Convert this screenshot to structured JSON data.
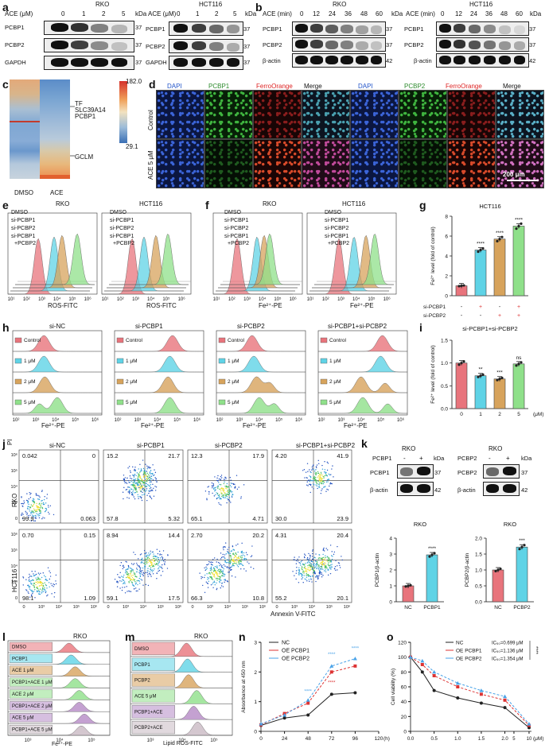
{
  "panel_letters": {
    "a": "a",
    "b": "b",
    "c": "c",
    "d": "d",
    "e": "e",
    "f": "f",
    "g": "g",
    "h": "h",
    "i": "i",
    "j": "j",
    "k": "k",
    "l": "l",
    "m": "m",
    "n": "n",
    "o": "o"
  },
  "a": {
    "left": {
      "title": "RKO",
      "unit": "ACE (μM)",
      "conc": [
        "0",
        "1",
        "2",
        "5"
      ],
      "kda": "kDa",
      "rows": [
        "PCBP1",
        "PCBP2",
        "GAPDH"
      ],
      "mw": [
        "37",
        "37",
        "37"
      ]
    },
    "right": {
      "title": "HCT116",
      "unit": "ACE (μM)",
      "conc": [
        "0",
        "1",
        "2",
        "5"
      ],
      "kda": "kDa",
      "rows": [
        "PCBP1",
        "PCBP2",
        "GAPDH"
      ],
      "mw": [
        "37",
        "37",
        "37"
      ]
    }
  },
  "b": {
    "left": {
      "title": "RKO",
      "unit": "ACE (min)",
      "times": [
        "0",
        "12",
        "24",
        "36",
        "48",
        "60"
      ],
      "kda": "kDa",
      "rows": [
        "PCBP1",
        "PCBP2",
        "β-actin"
      ],
      "mw": [
        "37",
        "37",
        "42"
      ]
    },
    "right": {
      "title": "HCT116",
      "unit": "ACE (min)",
      "times": [
        "0",
        "12",
        "24",
        "36",
        "48",
        "60"
      ],
      "kda": "kDa",
      "rows": [
        "PCBP1",
        "PCBP2",
        "β-actin"
      ],
      "mw": [
        "37",
        "37",
        "42"
      ]
    }
  },
  "c": {
    "scale_max": "182.0",
    "scale_min": "29.1",
    "genes": [
      "TF",
      "SLC39A14",
      "PCBP1",
      "GCLM"
    ],
    "cols": [
      "DMSO",
      "ACE"
    ]
  },
  "d": {
    "cols": [
      "DAPI",
      "PCBP1",
      "FerroOrange",
      "Merge",
      "DAPI",
      "PCBP2",
      "FerroOrange",
      "Merge"
    ],
    "rows": [
      "Control",
      "ACE 5 μM"
    ],
    "scalebar": "200 μm"
  },
  "e": {
    "titles": [
      "RKO",
      "HCT116"
    ],
    "legend": [
      "DMSO",
      "si-PCBP1",
      "si-PCBP2",
      "si-PCBP1",
      "+PCBP2"
    ],
    "xlabel": "ROS-FITC",
    "ticks": [
      "10¹",
      "10²",
      "10³",
      "10⁴",
      "10⁵",
      "10⁶"
    ]
  },
  "f": {
    "titles": [
      "RKO",
      "HCT116"
    ],
    "legend": [
      "DMSO",
      "si-PCBP1",
      "si-PCBP2",
      "si-PCBP1",
      "+PCBP2"
    ],
    "xlabel": "Fe²⁺-PE",
    "ticks": [
      "10¹",
      "10²",
      "10³",
      "10⁴",
      "10⁵",
      "10⁶"
    ]
  },
  "h": {
    "titles": [
      "si-NC",
      "si-PCBP1",
      "si-PCBP2",
      "si-PCBP1+si-PCBP2"
    ],
    "rows": [
      "Control",
      "1 μM",
      "2 μM",
      "5 μM"
    ],
    "xlabel": "Fe²⁺-PE",
    "ticks": [
      "10²",
      "10³",
      "10⁴",
      "10⁵",
      "10⁶"
    ]
  },
  "j": {
    "titles": [
      "si-NC",
      "si-PCBP1",
      "si-PCBP2",
      "si-PCBP1+si-PCBP2"
    ],
    "rows": [
      "RKO",
      "HCT116"
    ],
    "ylabel": "PI",
    "xlabel": "Annexin V-FITC",
    "quads": [
      [
        "0.042",
        "0",
        "99.9",
        "0.063"
      ],
      [
        "15.2",
        "21.7",
        "57.8",
        "5.32"
      ],
      [
        "12.3",
        "17.9",
        "65.1",
        "4.71"
      ],
      [
        "4.20",
        "41.9",
        "30.0",
        "23.9"
      ],
      [
        "0.70",
        "0.15",
        "98.1",
        "1.09"
      ],
      [
        "8.94",
        "14.4",
        "59.1",
        "17.5"
      ],
      [
        "2.70",
        "20.2",
        "66.3",
        "10.8"
      ],
      [
        "4.31",
        "20.4",
        "55.2",
        "20.1"
      ]
    ],
    "ticks": [
      "0",
      "10³",
      "10⁴",
      "10⁵",
      "10⁶"
    ]
  },
  "k": {
    "left": {
      "title": "RKO",
      "cond": "PCBP1",
      "signs": [
        "-",
        "+"
      ],
      "kda": "kDa",
      "rows": [
        "PCBP1",
        "β-actin"
      ],
      "mw": [
        "37",
        "42"
      ]
    },
    "right": {
      "title": "RKO",
      "cond": "PCBP2",
      "signs": [
        "-",
        "+"
      ],
      "kda": "kDa",
      "rows": [
        "PCBP2",
        "β-actin"
      ],
      "mw": [
        "37",
        "42"
      ]
    }
  },
  "l": {
    "title": "RKO",
    "rows": [
      "DMSO",
      "PCBP1",
      "ACE 1 μM",
      "PCBP1+ACE 1 μM",
      "ACE 2 μM",
      "PCBP1+ACE 2 μM",
      "ACE 5 μM",
      "PCBP1+ACE 5 μM"
    ],
    "xlabel": "Fe²⁺-PE",
    "ticks": [
      "10³",
      "10⁴",
      "10⁵"
    ]
  },
  "m": {
    "title": "RKO",
    "rows": [
      "DMSO",
      "PCBP1",
      "PCBP2",
      "ACE 5 μM",
      "PCBP1+ACE",
      "PCBP2+ACE"
    ],
    "xlabel": "Lipid ROS-FITC",
    "ticks": [
      "10³",
      "10⁴",
      "10⁵"
    ]
  },
  "colors": {
    "pink": "#e8747c",
    "cyan": "#5fd3e6",
    "tan": "#d7a35c",
    "green": "#8fe08a",
    "purple": "#b58ac6",
    "grey": "#c9b9c3",
    "red": "#d33",
    "blue": "#4aa3e8",
    "black": "#222"
  },
  "chart_data": [
    {
      "panel": "g",
      "type": "bar",
      "title": "HCT116",
      "ylabel": "Fe²⁺ level (fold of control)",
      "ylim": [
        0,
        8
      ],
      "yticks": [
        "0",
        "2",
        "4",
        "6",
        "8"
      ],
      "categories": [
        "1",
        "2",
        "3",
        "4"
      ],
      "values": [
        1.0,
        4.6,
        5.7,
        7.0
      ],
      "sig": [
        "",
        "****",
        "****",
        "****"
      ],
      "x_rows": [
        {
          "name": "si-PCBP1",
          "signs": [
            "-",
            "+",
            "-",
            "+"
          ]
        },
        {
          "name": "si-PCBP2",
          "signs": [
            "-",
            "-",
            "+",
            "+"
          ]
        }
      ]
    },
    {
      "panel": "i",
      "type": "bar",
      "title": "si-PCBP1+si-PCBP2",
      "ylabel": "Fe²⁺ level (fold of control)",
      "ylim": [
        0,
        1.5
      ],
      "yticks": [
        "0.0",
        "0.5",
        "1.0",
        "1.5"
      ],
      "categories": [
        "0",
        "1",
        "2",
        "5"
      ],
      "values": [
        1.0,
        0.72,
        0.65,
        0.98
      ],
      "sig": [
        "",
        "**",
        "***",
        "ns"
      ],
      "xunit": "(μM)"
    },
    {
      "panel": "k1",
      "type": "bar",
      "title": "RKO",
      "ylabel": "PCBP1/β-actin",
      "ylim": [
        0,
        4
      ],
      "yticks": [
        "0",
        "1",
        "2",
        "3",
        "4"
      ],
      "categories": [
        "NC",
        "PCBP1"
      ],
      "values": [
        1.0,
        2.95
      ],
      "sig": [
        "",
        "****"
      ]
    },
    {
      "panel": "k2",
      "type": "bar",
      "title": "RKO",
      "ylabel": "PCBP2/β-actin",
      "ylim": [
        0,
        2.0
      ],
      "yticks": [
        "0.0",
        "0.5",
        "1.0",
        "1.5",
        "2.0"
      ],
      "categories": [
        "NC",
        "PCBP2"
      ],
      "values": [
        1.0,
        1.72
      ],
      "sig": [
        "",
        "***"
      ]
    },
    {
      "panel": "n",
      "type": "line",
      "xlabel": "(h)",
      "ylabel": "Absorbance at 450 nm",
      "xlim": [
        0,
        120
      ],
      "ylim": [
        0,
        3
      ],
      "xticks": [
        "0",
        "24",
        "48",
        "72",
        "96",
        "120"
      ],
      "yticks": [
        "0",
        "1",
        "2",
        "3"
      ],
      "x": [
        0,
        24,
        48,
        72,
        96
      ],
      "series": [
        {
          "name": "NC",
          "values": [
            0.2,
            0.45,
            0.55,
            1.25,
            1.3
          ]
        },
        {
          "name": "OE PCBP1",
          "values": [
            0.22,
            0.6,
            0.95,
            2.0,
            2.2
          ]
        },
        {
          "name": "OE PCBP2",
          "values": [
            0.25,
            0.55,
            1.05,
            2.2,
            2.45
          ]
        }
      ],
      "annotations": [
        "****",
        "****",
        "****",
        "****"
      ]
    },
    {
      "panel": "o",
      "type": "line",
      "xlabel": "(μM)",
      "ylabel": "Cell viability (%)",
      "ylim": [
        0,
        120
      ],
      "xticks": [
        "0.0",
        "0.5",
        "1.0",
        "1.5",
        "2.0",
        "5",
        "10"
      ],
      "yticks": [
        "0",
        "20",
        "40",
        "60",
        "80",
        "100",
        "120"
      ],
      "x": [
        0,
        0.25,
        0.5,
        1.0,
        1.5,
        2.0,
        10
      ],
      "series": [
        {
          "name": "NC",
          "values": [
            100,
            80,
            55,
            45,
            38,
            32,
            5
          ]
        },
        {
          "name": "OE PCBP1",
          "values": [
            100,
            90,
            75,
            60,
            50,
            42,
            8
          ]
        },
        {
          "name": "OE PCBP2",
          "values": [
            100,
            95,
            80,
            65,
            55,
            47,
            10
          ]
        }
      ],
      "ic50": [
        "IC₅₀=0.699 μM",
        "IC₅₀=1.136 μM",
        "IC₅₀=1.354 μM"
      ],
      "sig": "****"
    }
  ]
}
